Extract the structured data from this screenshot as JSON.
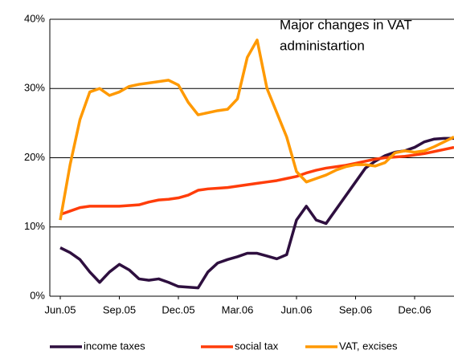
{
  "chart_data": {
    "type": "line",
    "annotation": [
      "Major changes in VAT",
      "administartion"
    ],
    "categories": [
      "Jun.05",
      null,
      null,
      null,
      null,
      null,
      "Sep.05",
      null,
      null,
      null,
      null,
      null,
      "Dec.05",
      null,
      null,
      null,
      null,
      null,
      "Mar.06",
      null,
      null,
      null,
      null,
      null,
      "Jun.06",
      null,
      null,
      null,
      null,
      null,
      "Sep.06",
      null,
      null,
      null,
      null,
      null,
      "Dec.06",
      null,
      null,
      null,
      null
    ],
    "series": [
      {
        "name": "income taxes",
        "color": "#2e0f3f",
        "values": [
          7,
          6.3,
          5.3,
          3.5,
          2,
          3.5,
          4.6,
          3.8,
          2.5,
          2.3,
          2.5,
          2,
          1.4,
          1.3,
          1.2,
          3.5,
          4.8,
          5.3,
          5.7,
          6.2,
          6.2,
          5.8,
          5.4,
          6,
          11,
          13,
          11,
          10.5,
          12.5,
          14.5,
          16.5,
          18.5,
          19.5,
          20.3,
          20.8,
          21,
          21.5,
          22.3,
          22.7,
          22.8,
          22.8
        ]
      },
      {
        "name": "social tax",
        "color": "#ff3d0a",
        "values": [
          11.8,
          12.3,
          12.8,
          13,
          13,
          13,
          13,
          13.1,
          13.2,
          13.6,
          13.9,
          14,
          14.2,
          14.6,
          15.3,
          15.5,
          15.6,
          15.7,
          15.9,
          16.1,
          16.3,
          16.5,
          16.7,
          17,
          17.3,
          17.8,
          18.2,
          18.5,
          18.7,
          18.9,
          19.2,
          19.5,
          19.8,
          20,
          20.1,
          20.2,
          20.4,
          20.6,
          20.9,
          21.2,
          21.5
        ]
      },
      {
        "name": "VAT, excises",
        "color": "#ff9900",
        "values": [
          11,
          19,
          25.5,
          29.5,
          30,
          29,
          29.5,
          30.3,
          30.6,
          30.8,
          31,
          31.2,
          30.5,
          28,
          26.2,
          26.5,
          26.8,
          27,
          28.5,
          34.5,
          37,
          30,
          26.5,
          23,
          18,
          16.5,
          17,
          17.5,
          18.2,
          18.7,
          19,
          19,
          18.8,
          19.3,
          20.7,
          21,
          20.8,
          21,
          21.6,
          22.3,
          23
        ]
      }
    ],
    "ylim": [
      0,
      40
    ],
    "yticks": [
      {
        "value": 0,
        "label": "0%"
      },
      {
        "value": 10,
        "label": "10%"
      },
      {
        "value": 20,
        "label": "20%"
      },
      {
        "value": 30,
        "label": "30%"
      },
      {
        "value": 40,
        "label": "40%"
      }
    ],
    "grid": true
  }
}
